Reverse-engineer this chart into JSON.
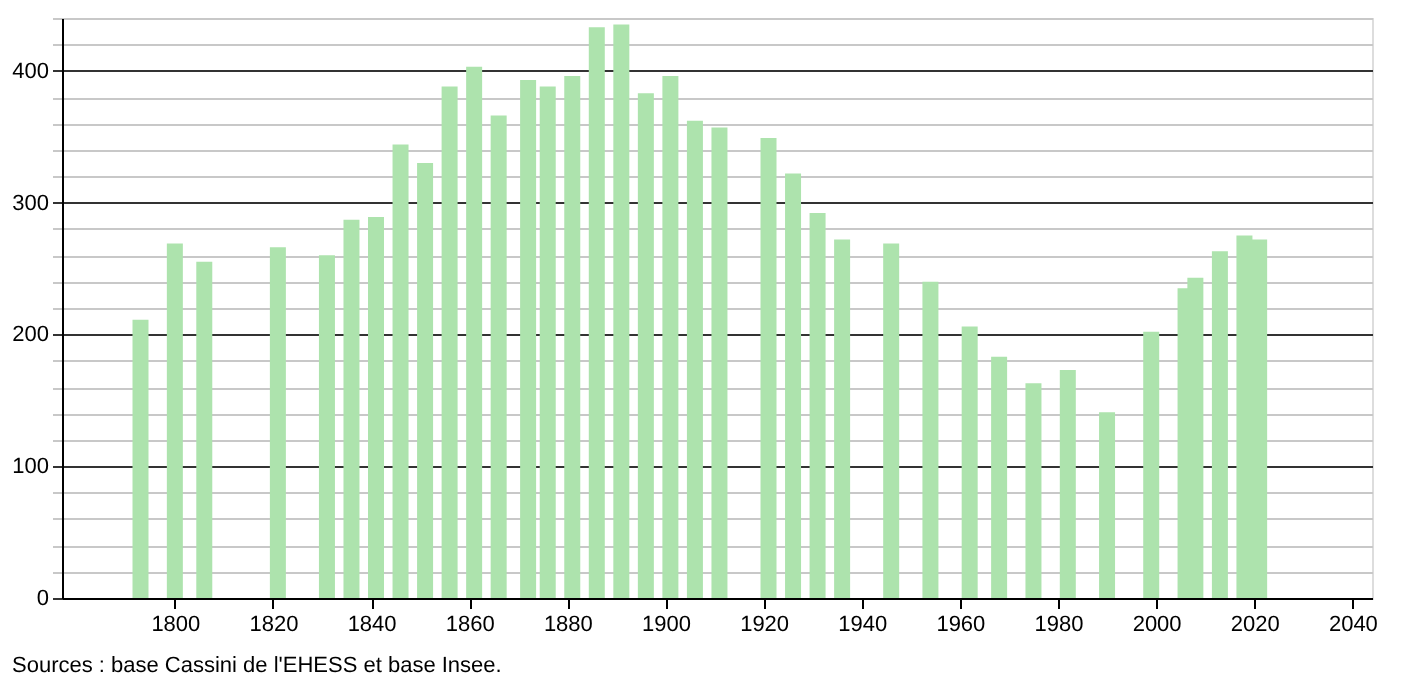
{
  "chart_data": {
    "type": "bar",
    "x": [
      1793,
      1800,
      1806,
      1821,
      1831,
      1836,
      1841,
      1846,
      1851,
      1856,
      1861,
      1866,
      1872,
      1876,
      1881,
      1886,
      1891,
      1896,
      1901,
      1906,
      1911,
      1921,
      1926,
      1931,
      1936,
      1946,
      1954,
      1962,
      1968,
      1975,
      1982,
      1990,
      1999,
      2006,
      2008,
      2013,
      2018,
      2021
    ],
    "values": [
      211,
      269,
      255,
      266,
      260,
      287,
      289,
      344,
      330,
      388,
      403,
      366,
      393,
      388,
      396,
      433,
      435,
      383,
      396,
      362,
      357,
      349,
      322,
      292,
      272,
      269,
      240,
      206,
      183,
      163,
      173,
      141,
      202,
      235,
      243,
      263,
      275,
      272
    ],
    "color": "#ade3ad",
    "xlim": [
      1777,
      2044
    ],
    "xticks": [
      1800,
      1820,
      1840,
      1860,
      1880,
      1900,
      1920,
      1940,
      1960,
      1980,
      2000,
      2020,
      2040
    ],
    "ylim": [
      0,
      440
    ],
    "yticks": [
      0,
      {
        "value": 20,
        "label": null
      },
      {
        "value": 40,
        "label": null
      },
      {
        "value": 60,
        "label": null
      },
      {
        "value": 80,
        "label": null
      },
      100,
      {
        "value": 120,
        "label": null
      },
      {
        "value": 140,
        "label": null
      },
      {
        "value": 160,
        "label": null
      },
      {
        "value": 180,
        "label": null
      },
      200,
      {
        "value": 220,
        "label": null
      },
      {
        "value": 240,
        "label": null
      },
      {
        "value": 260,
        "label": null
      },
      {
        "value": 280,
        "label": null
      },
      300,
      {
        "value": 320,
        "label": null
      },
      {
        "value": 340,
        "label": null
      },
      {
        "value": 360,
        "label": null
      },
      {
        "value": 380,
        "label": null
      },
      400,
      {
        "value": 420,
        "label": null
      },
      {
        "value": 440,
        "label": null
      }
    ],
    "grid": "y",
    "annotations": [
      "Sources : base Cassini de l'EHESS et base Insee."
    ]
  }
}
